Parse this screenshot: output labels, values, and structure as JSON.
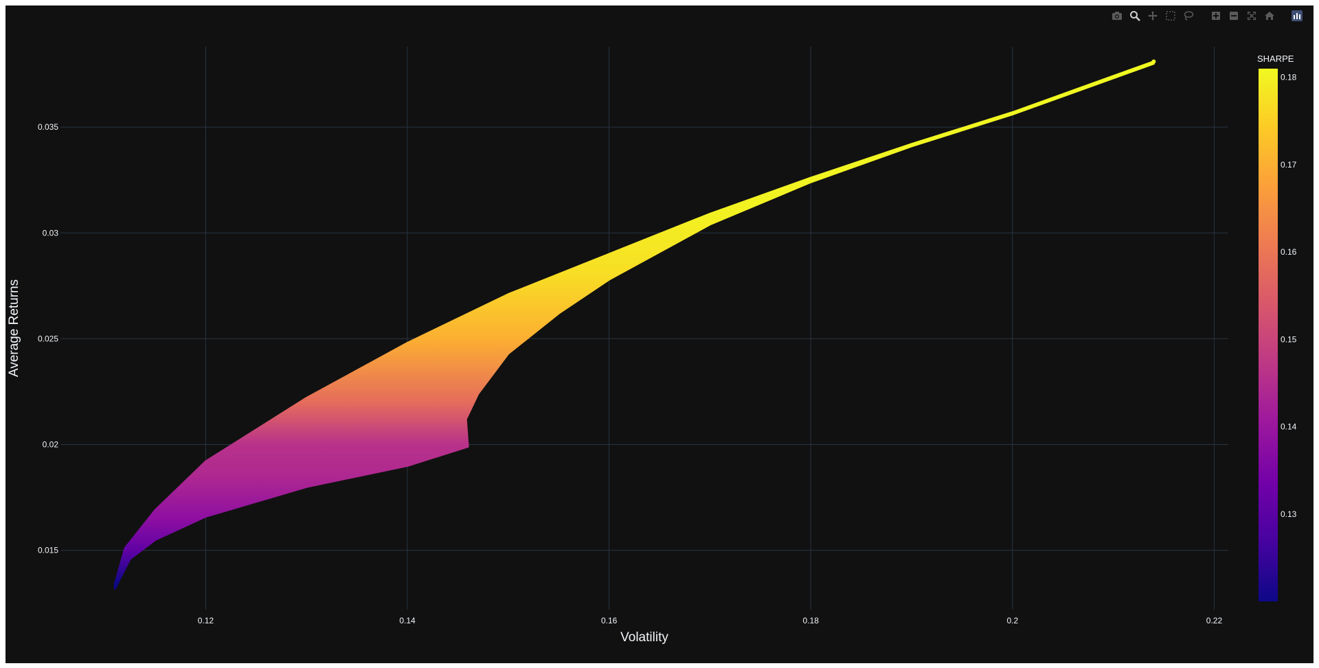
{
  "modebar": {
    "buttons": [
      "camera-icon",
      "zoom-icon",
      "pan-icon",
      "box-select-icon",
      "lasso-icon",
      "zoom-in-icon",
      "zoom-out-icon",
      "autoscale-icon",
      "reset-axes-icon",
      "plotly-logo-icon"
    ]
  },
  "colors": {
    "background": "#111111",
    "grid": "#283442",
    "text": "#f2f5fa",
    "colorscale": [
      "#0d0887",
      "#46039f",
      "#7201a8",
      "#9c179e",
      "#bd3786",
      "#d8576b",
      "#ed7953",
      "#fb9f3a",
      "#fdca26",
      "#f0f921"
    ]
  },
  "chart_data": {
    "type": "scatter",
    "xlabel": "Volatility",
    "ylabel": "Average Returns",
    "xlim": [
      0.1056,
      0.2214
    ],
    "ylim": [
      0.0122,
      0.0388
    ],
    "xticks": [
      0.12,
      0.14,
      0.16,
      0.18,
      0.2,
      0.22
    ],
    "xtick_labels": [
      "0.12",
      "0.14",
      "0.16",
      "0.18",
      "0.2",
      "0.22"
    ],
    "yticks": [
      0.015,
      0.02,
      0.025,
      0.03,
      0.035
    ],
    "ytick_labels": [
      "0.015",
      "0.02",
      "0.025",
      "0.03",
      "0.035"
    ],
    "grid": true,
    "colorbar": {
      "title": "SHARPE",
      "range": [
        0.12,
        0.181
      ],
      "ticks": [
        0.13,
        0.14,
        0.15,
        0.16,
        0.17,
        0.18
      ],
      "tick_labels": [
        "0.13",
        "0.14",
        "0.15",
        "0.16",
        "0.17",
        "0.18"
      ]
    },
    "region": {
      "upper_boundary": [
        [
          0.111,
          0.0134
        ],
        [
          0.112,
          0.0151
        ],
        [
          0.115,
          0.0169
        ],
        [
          0.12,
          0.0192
        ],
        [
          0.13,
          0.0222
        ],
        [
          0.14,
          0.0248
        ],
        [
          0.15,
          0.0271
        ],
        [
          0.16,
          0.029
        ],
        [
          0.17,
          0.0309
        ],
        [
          0.18,
          0.0326
        ],
        [
          0.19,
          0.0342
        ],
        [
          0.2,
          0.0357
        ],
        [
          0.214,
          0.0381
        ]
      ],
      "lower_boundary": [
        [
          0.111,
          0.0132
        ],
        [
          0.1125,
          0.0146
        ],
        [
          0.115,
          0.0155
        ],
        [
          0.12,
          0.0166
        ],
        [
          0.13,
          0.018
        ],
        [
          0.14,
          0.019
        ],
        [
          0.146,
          0.0199
        ],
        [
          0.1458,
          0.0212
        ],
        [
          0.147,
          0.0224
        ],
        [
          0.15,
          0.0243
        ],
        [
          0.155,
          0.0262
        ],
        [
          0.16,
          0.0278
        ],
        [
          0.17,
          0.0304
        ],
        [
          0.18,
          0.0324
        ],
        [
          0.19,
          0.0341
        ],
        [
          0.2,
          0.0356
        ],
        [
          0.214,
          0.038
        ]
      ]
    },
    "sharpe_gradient": [
      [
        0.0134,
        0.12
      ],
      [
        0.015,
        0.131
      ],
      [
        0.0165,
        0.138
      ],
      [
        0.0185,
        0.144
      ],
      [
        0.02,
        0.146
      ],
      [
        0.022,
        0.158
      ],
      [
        0.025,
        0.17
      ],
      [
        0.028,
        0.177
      ],
      [
        0.031,
        0.18
      ],
      [
        0.038,
        0.181
      ]
    ]
  }
}
